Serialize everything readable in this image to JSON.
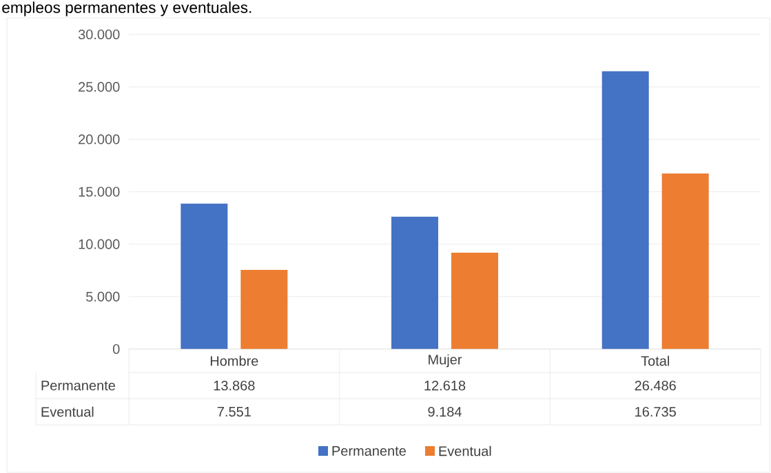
{
  "chart_data": {
    "type": "bar",
    "title": "empleos permanentes y eventuales.",
    "categories": [
      "Hombre",
      "Mujer",
      "Total"
    ],
    "series": [
      {
        "name": "Permanente",
        "color": "#4472c4",
        "values": [
          13868,
          12618,
          26486
        ],
        "value_labels": [
          "13.868",
          "12.618",
          "26.486"
        ]
      },
      {
        "name": "Eventual",
        "color": "#ed7d31",
        "values": [
          7551,
          9184,
          16735
        ],
        "value_labels": [
          "7.551",
          "9.184",
          "16.735"
        ]
      }
    ],
    "ylim": [
      0,
      30000
    ],
    "yticks": [
      0,
      {
        "value": 5000,
        "label": "5.000"
      },
      {
        "value": 10000,
        "label": "10.000"
      },
      {
        "value": 15000,
        "label": "15.000"
      },
      {
        "value": 20000,
        "label": "20.000"
      },
      {
        "value": 25000,
        "label": "25.000"
      },
      {
        "value": 30000,
        "label": "30.000"
      }
    ],
    "grid": true,
    "legend": "bottom"
  }
}
